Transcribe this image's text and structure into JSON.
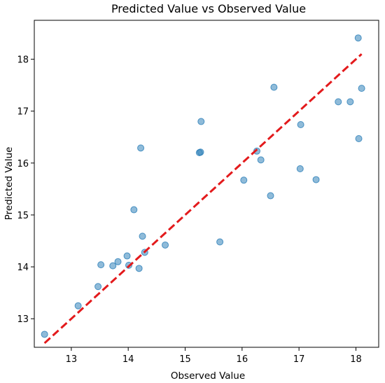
{
  "chart_data": {
    "type": "scatter",
    "title": "Predicted Value vs Observed Value",
    "xlabel": "Observed Value",
    "ylabel": "Predicted Value",
    "xlim": [
      12.35,
      18.4
    ],
    "ylim": [
      12.45,
      18.75
    ],
    "xticks": [
      "13",
      "14",
      "15",
      "16",
      "17",
      "18"
    ],
    "yticks": [
      "13",
      "14",
      "15",
      "16",
      "17",
      "18"
    ],
    "grid": false,
    "points": {
      "x": [
        12.53,
        13.12,
        13.47,
        13.52,
        13.73,
        13.82,
        13.98,
        14.01,
        14.1,
        14.19,
        14.22,
        14.25,
        14.29,
        14.65,
        15.25,
        15.27,
        15.28,
        15.61,
        16.03,
        16.26,
        16.33,
        16.5,
        16.56,
        17.02,
        17.03,
        17.3,
        17.69,
        17.9,
        18.04,
        18.05,
        18.1
      ],
      "y": [
        12.7,
        13.25,
        13.62,
        14.04,
        14.02,
        14.1,
        14.21,
        14.03,
        15.1,
        13.97,
        16.29,
        14.59,
        14.28,
        14.42,
        16.2,
        16.21,
        16.8,
        14.48,
        15.67,
        16.23,
        16.06,
        15.37,
        17.46,
        15.89,
        16.74,
        15.68,
        17.18,
        17.18,
        18.41,
        16.47,
        17.44
      ],
      "color": "#1f77b4"
    },
    "reference_line": {
      "x": [
        12.53,
        18.1
      ],
      "y": [
        12.53,
        18.1
      ],
      "color": "#e31a1c",
      "style": "dashed"
    }
  }
}
